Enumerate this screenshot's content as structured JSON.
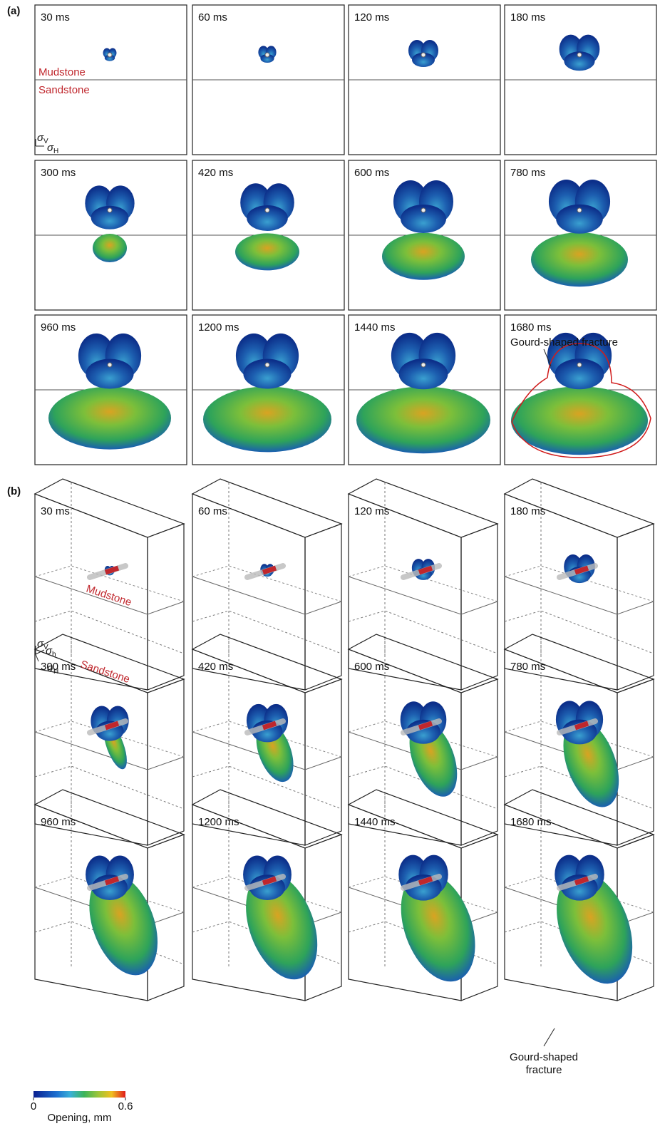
{
  "panel_a": {
    "label": "(a)",
    "times": [
      "30 ms",
      "60 ms",
      "120 ms",
      "180 ms",
      "300 ms",
      "420 ms",
      "600 ms",
      "780 ms",
      "960 ms",
      "1200 ms",
      "1440 ms",
      "1680 ms"
    ],
    "strata": [
      "Mudstone",
      "Sandstone"
    ],
    "stress": [
      {
        "symbol": "σ",
        "sub": "V"
      },
      {
        "symbol": "σ",
        "sub": "H"
      }
    ],
    "annotation": "Gourd-shaped fracture"
  },
  "panel_b": {
    "label": "(b)",
    "times": [
      "30 ms",
      "60 ms",
      "120 ms",
      "180 ms",
      "300 ms",
      "420 ms",
      "600 ms",
      "780 ms",
      "960 ms",
      "1200 ms",
      "1440 ms",
      "1680 ms"
    ],
    "strata": [
      "Mudstone",
      "Sandstone"
    ],
    "stress": [
      {
        "symbol": "σ",
        "sub": "V"
      },
      {
        "symbol": "σ",
        "sub": "h"
      },
      {
        "symbol": "σ",
        "sub": "H"
      }
    ],
    "annotation": [
      "Gourd-shaped",
      "fracture"
    ]
  },
  "colorbar": {
    "lim": [
      0,
      0.6
    ],
    "ticks": [
      0,
      0.6
    ],
    "label": "Opening, mm"
  }
}
